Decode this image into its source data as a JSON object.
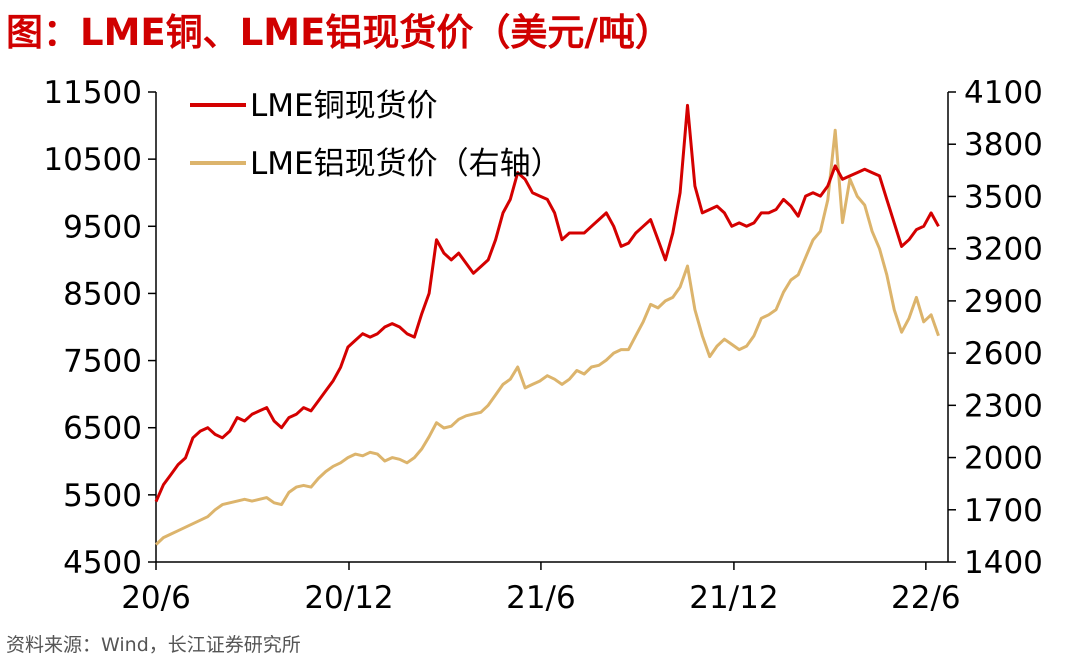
{
  "title": "图：LME铜、LME铝现货价（美元/吨）",
  "source": "资料来源：Wind，长江证券研究所",
  "colors": {
    "copper": "#d40000",
    "aluminum": "#dcb46c",
    "axis": "#000000",
    "title": "#d00000"
  },
  "chart_data": {
    "type": "line",
    "x_ticks": [
      "20/6",
      "20/12",
      "21/6",
      "21/12",
      "22/6"
    ],
    "y_left": {
      "lim": [
        4500,
        11500
      ],
      "ticks": [
        4500,
        5500,
        6500,
        7500,
        8500,
        9500,
        10500,
        11500
      ]
    },
    "y_right": {
      "lim": [
        1400,
        4100
      ],
      "ticks": [
        1400,
        1700,
        2000,
        2300,
        2600,
        2900,
        3200,
        3500,
        3800,
        4100
      ]
    },
    "grid": false,
    "legend_position": "top-left",
    "series": [
      {
        "name": "LME铜现货价",
        "axis": "left",
        "points": [
          [
            "2020-06-01",
            5400
          ],
          [
            "2020-06-08",
            5650
          ],
          [
            "2020-06-15",
            5800
          ],
          [
            "2020-06-22",
            5950
          ],
          [
            "2020-06-29",
            6050
          ],
          [
            "2020-07-06",
            6350
          ],
          [
            "2020-07-13",
            6450
          ],
          [
            "2020-07-20",
            6500
          ],
          [
            "2020-07-27",
            6400
          ],
          [
            "2020-08-03",
            6350
          ],
          [
            "2020-08-10",
            6450
          ],
          [
            "2020-08-17",
            6650
          ],
          [
            "2020-08-24",
            6600
          ],
          [
            "2020-08-31",
            6700
          ],
          [
            "2020-09-07",
            6750
          ],
          [
            "2020-09-14",
            6800
          ],
          [
            "2020-09-21",
            6600
          ],
          [
            "2020-09-28",
            6500
          ],
          [
            "2020-10-05",
            6650
          ],
          [
            "2020-10-12",
            6700
          ],
          [
            "2020-10-19",
            6800
          ],
          [
            "2020-10-26",
            6750
          ],
          [
            "2020-11-02",
            6900
          ],
          [
            "2020-11-09",
            7050
          ],
          [
            "2020-11-16",
            7200
          ],
          [
            "2020-11-23",
            7400
          ],
          [
            "2020-11-30",
            7700
          ],
          [
            "2020-12-07",
            7800
          ],
          [
            "2020-12-14",
            7900
          ],
          [
            "2020-12-21",
            7850
          ],
          [
            "2020-12-28",
            7900
          ],
          [
            "2021-01-04",
            8000
          ],
          [
            "2021-01-11",
            8050
          ],
          [
            "2021-01-18",
            8000
          ],
          [
            "2021-01-25",
            7900
          ],
          [
            "2021-02-01",
            7850
          ],
          [
            "2021-02-08",
            8200
          ],
          [
            "2021-02-15",
            8500
          ],
          [
            "2021-02-22",
            9300
          ],
          [
            "2021-03-01",
            9100
          ],
          [
            "2021-03-08",
            9000
          ],
          [
            "2021-03-15",
            9100
          ],
          [
            "2021-03-22",
            8950
          ],
          [
            "2021-03-29",
            8800
          ],
          [
            "2021-04-05",
            8900
          ],
          [
            "2021-04-12",
            9000
          ],
          [
            "2021-04-19",
            9300
          ],
          [
            "2021-04-26",
            9700
          ],
          [
            "2021-05-03",
            9900
          ],
          [
            "2021-05-10",
            10300
          ],
          [
            "2021-05-17",
            10200
          ],
          [
            "2021-05-24",
            10000
          ],
          [
            "2021-05-31",
            9950
          ],
          [
            "2021-06-07",
            9900
          ],
          [
            "2021-06-14",
            9700
          ],
          [
            "2021-06-21",
            9300
          ],
          [
            "2021-06-28",
            9400
          ],
          [
            "2021-07-05",
            9400
          ],
          [
            "2021-07-12",
            9400
          ],
          [
            "2021-07-19",
            9500
          ],
          [
            "2021-07-26",
            9600
          ],
          [
            "2021-08-02",
            9700
          ],
          [
            "2021-08-09",
            9500
          ],
          [
            "2021-08-16",
            9200
          ],
          [
            "2021-08-23",
            9250
          ],
          [
            "2021-08-30",
            9400
          ],
          [
            "2021-09-06",
            9500
          ],
          [
            "2021-09-13",
            9600
          ],
          [
            "2021-09-20",
            9300
          ],
          [
            "2021-09-27",
            9000
          ],
          [
            "2021-10-04",
            9400
          ],
          [
            "2021-10-11",
            10000
          ],
          [
            "2021-10-18",
            11300
          ],
          [
            "2021-10-25",
            10100
          ],
          [
            "2021-11-01",
            9700
          ],
          [
            "2021-11-08",
            9750
          ],
          [
            "2021-11-15",
            9800
          ],
          [
            "2021-11-22",
            9700
          ],
          [
            "2021-11-29",
            9500
          ],
          [
            "2021-12-06",
            9550
          ],
          [
            "2021-12-13",
            9500
          ],
          [
            "2021-12-20",
            9550
          ],
          [
            "2021-12-27",
            9700
          ],
          [
            "2022-01-03",
            9700
          ],
          [
            "2022-01-10",
            9750
          ],
          [
            "2022-01-17",
            9900
          ],
          [
            "2022-01-24",
            9800
          ],
          [
            "2022-01-31",
            9650
          ],
          [
            "2022-02-07",
            9950
          ],
          [
            "2022-02-14",
            10000
          ],
          [
            "2022-02-21",
            9950
          ],
          [
            "2022-02-28",
            10100
          ],
          [
            "2022-03-07",
            10400
          ],
          [
            "2022-03-14",
            10200
          ],
          [
            "2022-03-21",
            10250
          ],
          [
            "2022-03-28",
            10300
          ],
          [
            "2022-04-04",
            10350
          ],
          [
            "2022-04-11",
            10300
          ],
          [
            "2022-04-18",
            10250
          ],
          [
            "2022-04-25",
            9900
          ],
          [
            "2022-05-02",
            9550
          ],
          [
            "2022-05-09",
            9200
          ],
          [
            "2022-05-16",
            9300
          ],
          [
            "2022-05-23",
            9450
          ],
          [
            "2022-05-30",
            9500
          ],
          [
            "2022-06-06",
            9700
          ],
          [
            "2022-06-13",
            9500
          ]
        ]
      },
      {
        "name": "LME铝现货价（右轴）",
        "axis": "right",
        "points": [
          [
            "2020-06-01",
            1500
          ],
          [
            "2020-06-08",
            1540
          ],
          [
            "2020-06-15",
            1560
          ],
          [
            "2020-06-22",
            1580
          ],
          [
            "2020-06-29",
            1600
          ],
          [
            "2020-07-06",
            1620
          ],
          [
            "2020-07-13",
            1640
          ],
          [
            "2020-07-20",
            1660
          ],
          [
            "2020-07-27",
            1700
          ],
          [
            "2020-08-03",
            1730
          ],
          [
            "2020-08-10",
            1740
          ],
          [
            "2020-08-17",
            1750
          ],
          [
            "2020-08-24",
            1760
          ],
          [
            "2020-08-31",
            1750
          ],
          [
            "2020-09-07",
            1760
          ],
          [
            "2020-09-14",
            1770
          ],
          [
            "2020-09-21",
            1740
          ],
          [
            "2020-09-28",
            1730
          ],
          [
            "2020-10-05",
            1800
          ],
          [
            "2020-10-12",
            1830
          ],
          [
            "2020-10-19",
            1840
          ],
          [
            "2020-10-26",
            1830
          ],
          [
            "2020-11-02",
            1880
          ],
          [
            "2020-11-09",
            1920
          ],
          [
            "2020-11-16",
            1950
          ],
          [
            "2020-11-23",
            1970
          ],
          [
            "2020-11-30",
            2000
          ],
          [
            "2020-12-07",
            2020
          ],
          [
            "2020-12-14",
            2010
          ],
          [
            "2020-12-21",
            2030
          ],
          [
            "2020-12-28",
            2020
          ],
          [
            "2021-01-04",
            1980
          ],
          [
            "2021-01-11",
            2000
          ],
          [
            "2021-01-18",
            1990
          ],
          [
            "2021-01-25",
            1970
          ],
          [
            "2021-02-01",
            2000
          ],
          [
            "2021-02-08",
            2050
          ],
          [
            "2021-02-15",
            2120
          ],
          [
            "2021-02-22",
            2200
          ],
          [
            "2021-03-01",
            2170
          ],
          [
            "2021-03-08",
            2180
          ],
          [
            "2021-03-15",
            2220
          ],
          [
            "2021-03-22",
            2240
          ],
          [
            "2021-03-29",
            2250
          ],
          [
            "2021-04-05",
            2260
          ],
          [
            "2021-04-12",
            2300
          ],
          [
            "2021-04-19",
            2360
          ],
          [
            "2021-04-26",
            2420
          ],
          [
            "2021-05-03",
            2450
          ],
          [
            "2021-05-10",
            2520
          ],
          [
            "2021-05-17",
            2400
          ],
          [
            "2021-05-24",
            2420
          ],
          [
            "2021-05-31",
            2440
          ],
          [
            "2021-06-07",
            2470
          ],
          [
            "2021-06-14",
            2450
          ],
          [
            "2021-06-21",
            2420
          ],
          [
            "2021-06-28",
            2450
          ],
          [
            "2021-07-05",
            2500
          ],
          [
            "2021-07-12",
            2480
          ],
          [
            "2021-07-19",
            2520
          ],
          [
            "2021-07-26",
            2530
          ],
          [
            "2021-08-02",
            2560
          ],
          [
            "2021-08-09",
            2600
          ],
          [
            "2021-08-16",
            2620
          ],
          [
            "2021-08-23",
            2620
          ],
          [
            "2021-08-30",
            2700
          ],
          [
            "2021-09-06",
            2780
          ],
          [
            "2021-09-13",
            2880
          ],
          [
            "2021-09-20",
            2860
          ],
          [
            "2021-09-27",
            2900
          ],
          [
            "2021-10-04",
            2920
          ],
          [
            "2021-10-11",
            2980
          ],
          [
            "2021-10-18",
            3100
          ],
          [
            "2021-10-25",
            2850
          ],
          [
            "2021-11-01",
            2700
          ],
          [
            "2021-11-08",
            2580
          ],
          [
            "2021-11-15",
            2640
          ],
          [
            "2021-11-22",
            2680
          ],
          [
            "2021-11-29",
            2650
          ],
          [
            "2021-12-06",
            2620
          ],
          [
            "2021-12-13",
            2640
          ],
          [
            "2021-12-20",
            2700
          ],
          [
            "2021-12-27",
            2800
          ],
          [
            "2022-01-03",
            2820
          ],
          [
            "2022-01-10",
            2850
          ],
          [
            "2022-01-17",
            2950
          ],
          [
            "2022-01-24",
            3020
          ],
          [
            "2022-01-31",
            3050
          ],
          [
            "2022-02-07",
            3150
          ],
          [
            "2022-02-14",
            3250
          ],
          [
            "2022-02-21",
            3300
          ],
          [
            "2022-02-28",
            3480
          ],
          [
            "2022-03-07",
            3880
          ],
          [
            "2022-03-14",
            3350
          ],
          [
            "2022-03-21",
            3600
          ],
          [
            "2022-03-28",
            3500
          ],
          [
            "2022-04-04",
            3450
          ],
          [
            "2022-04-11",
            3300
          ],
          [
            "2022-04-18",
            3200
          ],
          [
            "2022-04-25",
            3050
          ],
          [
            "2022-05-02",
            2850
          ],
          [
            "2022-05-09",
            2720
          ],
          [
            "2022-05-16",
            2800
          ],
          [
            "2022-05-23",
            2920
          ],
          [
            "2022-05-30",
            2780
          ],
          [
            "2022-06-06",
            2820
          ],
          [
            "2022-06-13",
            2700
          ]
        ]
      }
    ]
  }
}
